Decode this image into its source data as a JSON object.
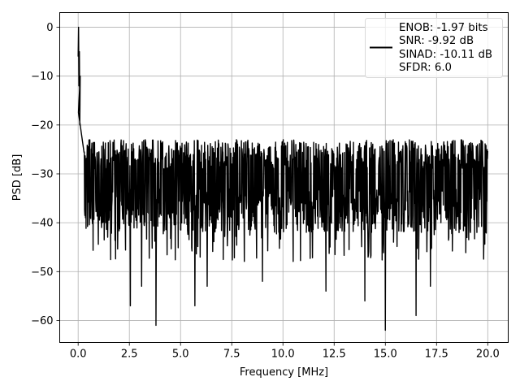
{
  "chart_data": {
    "type": "line",
    "xlabel": "Frequency [MHz]",
    "ylabel": "PSD [dB]",
    "xlim": [
      -0.9,
      21.0
    ],
    "ylim": [
      -64.5,
      3.0
    ],
    "x_ticks": [
      0.0,
      2.5,
      5.0,
      7.5,
      10.0,
      12.5,
      15.0,
      17.5,
      20.0
    ],
    "x_tick_labels": [
      "0.0",
      "2.5",
      "5.0",
      "7.5",
      "10.0",
      "12.5",
      "15.0",
      "17.5",
      "20.0"
    ],
    "y_ticks": [
      0,
      -10,
      -20,
      -30,
      -40,
      -50,
      -60
    ],
    "y_tick_labels": [
      "0",
      "−10",
      "−20",
      "−30",
      "−40",
      "−50",
      "−60"
    ],
    "grid": true,
    "legend_position": "top-right",
    "legend_lines": [
      "ENOB: -1.97 bits",
      "SNR: -9.92 dB",
      "SINAD: -10.11 dB",
      "SFDR: 6.0"
    ],
    "series": [
      {
        "color": "#000000",
        "description": "noise-like PSD, peak 0 dB near 0 MHz, floor about -30 dB",
        "x_range": [
          0.0,
          20.0
        ],
        "peak": {
          "x": 0.02,
          "y": 0
        },
        "floor_mean": -30,
        "upper_envelope": -22,
        "lower_envelope": -40,
        "deep_dips": [
          {
            "x": 2.55,
            "y": -57
          },
          {
            "x": 3.8,
            "y": -61
          },
          {
            "x": 5.7,
            "y": -57
          },
          {
            "x": 15.0,
            "y": -62
          },
          {
            "x": 16.5,
            "y": -59
          },
          {
            "x": 6.3,
            "y": -53
          },
          {
            "x": 3.1,
            "y": -53
          },
          {
            "x": 12.1,
            "y": -54
          },
          {
            "x": 14.0,
            "y": -56
          },
          {
            "x": 17.2,
            "y": -53
          },
          {
            "x": 9.0,
            "y": -52
          }
        ]
      }
    ]
  }
}
